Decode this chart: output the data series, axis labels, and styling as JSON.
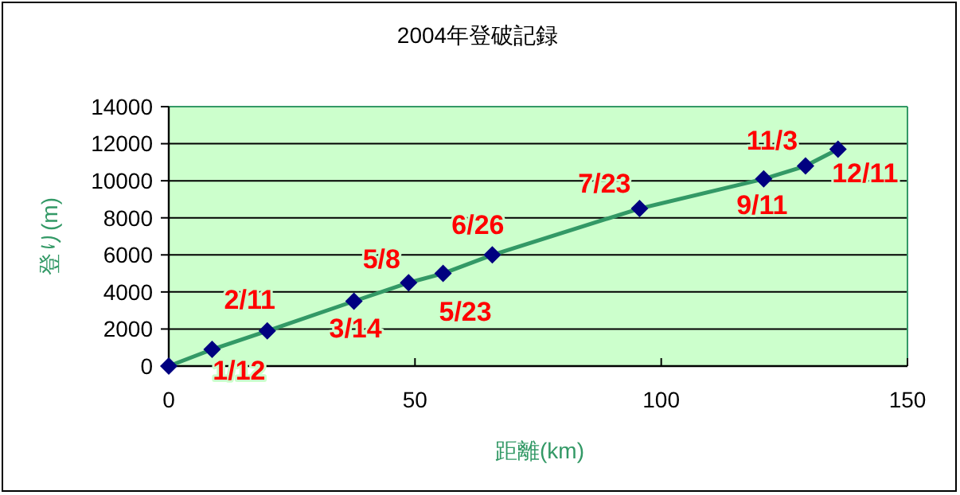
{
  "chart_data": {
    "type": "line",
    "title": "2004年登破記録",
    "xlabel": "距離(km)",
    "ylabel": "登り(m)",
    "x": [
      0,
      8.8,
      20,
      37.6,
      48.7,
      55.7,
      65.7,
      95.6,
      120.8,
      129.3,
      135.9
    ],
    "series": [
      {
        "color": "#339966",
        "values": [
          0,
          900,
          1900,
          3500,
          4500,
          5000,
          6000,
          8500,
          10100,
          10800,
          11700
        ]
      }
    ],
    "xlim": [
      0,
      150
    ],
    "xticks": [
      0,
      50,
      100,
      150
    ],
    "ylim": [
      0,
      14000
    ],
    "yticks": [
      0,
      2000,
      4000,
      6000,
      8000,
      10000,
      12000,
      14000
    ],
    "grid": "y",
    "marker": "diamond",
    "line_style": "solid",
    "annotations": [
      {
        "text": "1/12",
        "x": 8.8,
        "y": 900
      },
      {
        "text": "2/11",
        "x": 20,
        "y": 1900
      },
      {
        "text": "3/14",
        "x": 37.6,
        "y": 3500
      },
      {
        "text": "5/8",
        "x": 48.7,
        "y": 4500
      },
      {
        "text": "5/23",
        "x": 55.7,
        "y": 5000
      },
      {
        "text": "6/26",
        "x": 65.7,
        "y": 6000
      },
      {
        "text": "7/23",
        "x": 95.6,
        "y": 8500
      },
      {
        "text": "9/11",
        "x": 120.8,
        "y": 10100
      },
      {
        "text": "11/3",
        "x": 129.3,
        "y": 10800
      },
      {
        "text": "12/11",
        "x": 135.9,
        "y": 11700
      }
    ]
  }
}
